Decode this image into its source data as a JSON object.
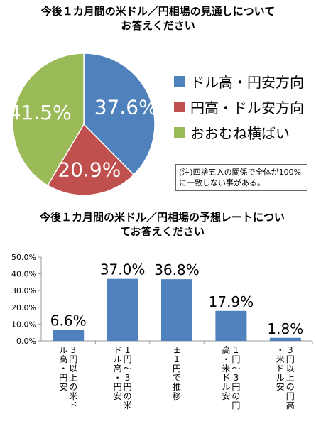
{
  "pie": {
    "title_lines": [
      "今後１カ月間の米ドル／円相場の見通しについて",
      "お答えください"
    ],
    "legend_items": [
      {
        "label": "ドル高・円安方向",
        "color": "#4f81bd"
      },
      {
        "label": "円高・ドル安方向",
        "color": "#c0504d"
      },
      {
        "label": "おおむね横ばい",
        "color": "#9bbb59"
      }
    ],
    "note": "(注)四捨五入の関係で全体が100%に一致しない事がある。"
  },
  "bar": {
    "title_lines": [
      "今後１カ月間の米ドル／円相場の予想レートについ",
      "てお答えください"
    ]
  },
  "chart_data": [
    {
      "type": "pie",
      "title": "今後１カ月間の米ドル／円相場の見通しについてお答えください",
      "categories": [
        "ドル高・円安方向",
        "円高・ドル安方向",
        "おおむね横ばい"
      ],
      "values": [
        37.6,
        20.9,
        41.5
      ],
      "data_labels": [
        "37.6%",
        "20.9%",
        "41.5%"
      ],
      "colors": [
        "#4f81bd",
        "#c0504d",
        "#9bbb59"
      ],
      "legend": "right"
    },
    {
      "type": "bar",
      "title": "今後１カ月間の米ドル／円相場の予想レートについてお答えください",
      "categories": [
        "3円以上の米ドル高・円安",
        "1円～3円の米ドル高・円安",
        "±1円で推移",
        "1円～3円の円高・米ドル安",
        "3円以上の円高・米ドル安"
      ],
      "values": [
        6.6,
        37.0,
        36.8,
        17.9,
        1.8
      ],
      "data_labels": [
        "6.6%",
        "37.0%",
        "36.8%",
        "17.9%",
        "1.8%"
      ],
      "ylim": [
        0,
        50
      ],
      "yticks": [
        "0.0%",
        "10.0%",
        "20.0%",
        "30.0%",
        "40.0%",
        "50.0%"
      ],
      "bar_color": "#4f81bd",
      "grid": false
    }
  ]
}
